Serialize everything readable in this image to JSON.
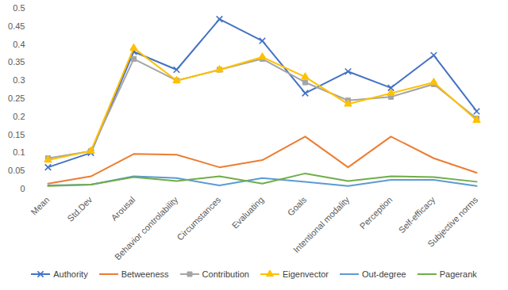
{
  "chart_data": {
    "type": "line",
    "categories": [
      "Mean",
      "Std.Dev",
      "Arousal",
      "Behavior controlability",
      "Circumstances",
      "Evaluating",
      "Goals",
      "Intentional modality",
      "Perception",
      "Self-efficacy",
      "Subjective norms"
    ],
    "series": [
      {
        "name": "Authority",
        "color": "#4472c4",
        "marker": "times",
        "values": [
          0.06,
          0.1,
          0.38,
          0.33,
          0.47,
          0.41,
          0.265,
          0.325,
          0.28,
          0.37,
          0.215
        ]
      },
      {
        "name": "Betweeness",
        "color": "#ed7d31",
        "values": [
          0.015,
          0.035,
          0.097,
          0.095,
          0.06,
          0.08,
          0.145,
          0.06,
          0.145,
          0.085,
          0.045
        ]
      },
      {
        "name": "Contribution",
        "color": "#a5a5a5",
        "marker": "square",
        "values": [
          0.085,
          0.105,
          0.36,
          0.3,
          0.33,
          0.36,
          0.295,
          0.245,
          0.255,
          0.29,
          0.195
        ]
      },
      {
        "name": "Eigenvector",
        "color": "#ffc000",
        "marker": "triangle",
        "values": [
          0.08,
          0.105,
          0.39,
          0.3,
          0.33,
          0.365,
          0.31,
          0.235,
          0.265,
          0.295,
          0.19
        ]
      },
      {
        "name": "Out-degree",
        "color": "#5b9bd5",
        "values": [
          0.01,
          0.012,
          0.035,
          0.03,
          0.01,
          0.03,
          0.02,
          0.008,
          0.025,
          0.025,
          0.008
        ]
      },
      {
        "name": "Pagerank",
        "color": "#70ad47",
        "values": [
          0.008,
          0.012,
          0.033,
          0.022,
          0.035,
          0.015,
          0.043,
          0.022,
          0.035,
          0.033,
          0.02
        ]
      }
    ],
    "ylim": [
      0,
      0.5
    ],
    "yticks": [
      0,
      0.05,
      0.1,
      0.15,
      0.2,
      0.25,
      0.3,
      0.35,
      0.4,
      0.45,
      0.5
    ],
    "grid": false,
    "legend": "bottom"
  }
}
